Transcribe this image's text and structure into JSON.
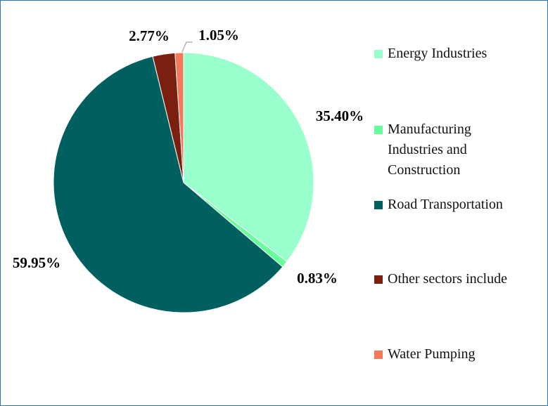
{
  "chart_data": {
    "type": "pie",
    "categories": [
      "Energy Industries",
      "Manufacturing Industries and Construction",
      "Road Transportation",
      "Other sectors include",
      "Water Pumping"
    ],
    "values": [
      35.4,
      0.83,
      59.95,
      2.77,
      1.05
    ],
    "value_labels": [
      "35.40%",
      "0.83%",
      "59.95%",
      "2.77%",
      "1.05%"
    ],
    "colors": [
      "#99ffcc",
      "#66ff99",
      "#006060",
      "#7b2010",
      "#f4795b"
    ],
    "legend": "right"
  }
}
